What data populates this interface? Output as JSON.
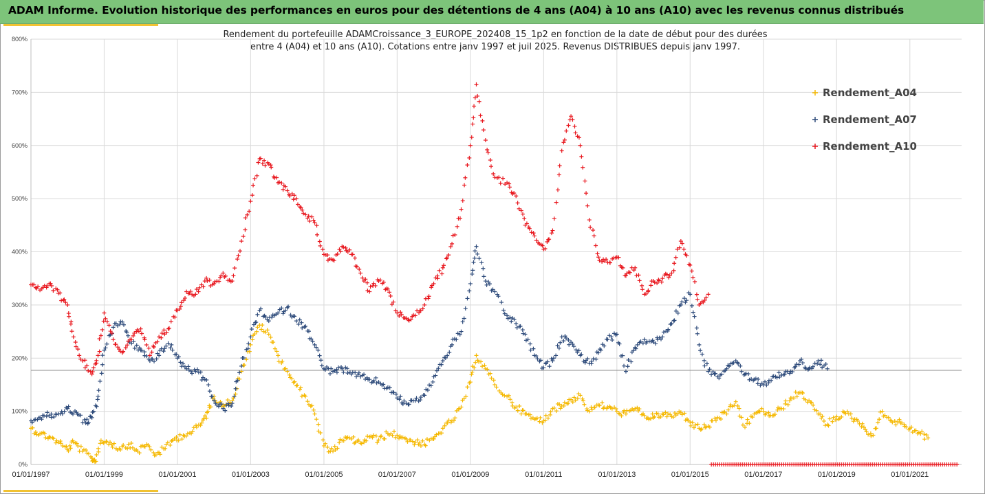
{
  "header": {
    "title": "ADAM Informe. Evolution historique des performances en euros pour des détentions de 4 ans (A04) à 10 ans (A10) avec les revenus connus distribués"
  },
  "colors": {
    "header_bg": "#7dc47a",
    "accent": "#f1c232",
    "A04": "#f5b800",
    "A07": "#2d4a7a",
    "A10": "#e8161d",
    "gridline": "#d9d9d9",
    "refline": "#8c8c8c"
  },
  "chart_data": {
    "type": "scatter",
    "title": "Rendement du portefeuille ADAMCroissance_3_EUROPE_202408_15_1p2  en fonction de la date de début pour des durées",
    "subtitle": "entre 4 (A04) et 10 ans (A10). Cotations  entre janv 1997 et juil 2025. Revenus DISTRIBUES depuis janv 1997.",
    "xlabel": "",
    "ylabel": "",
    "x_type": "date",
    "xlim": [
      "1997-01-01",
      "2022-06-01"
    ],
    "ylim": [
      0,
      800
    ],
    "y_ticks": [
      "0%",
      "100%",
      "200%",
      "300%",
      "400%",
      "500%",
      "600%",
      "700%",
      "800%"
    ],
    "x_ticks": [
      "01/01/1997",
      "01/01/1999",
      "01/01/2001",
      "01/01/2003",
      "01/01/2005",
      "01/01/2007",
      "01/01/2009",
      "01/01/2011",
      "01/01/2013",
      "01/01/2015",
      "01/01/2017",
      "01/01/2019",
      "01/01/2021"
    ],
    "grid": true,
    "legend_position": "top-right",
    "reference_line_y": 177,
    "marker": "+",
    "series": [
      {
        "name": "Rendement_A04",
        "points": [
          [
            "1997-01-01",
            68
          ],
          [
            "1997-04-01",
            58
          ],
          [
            "1997-07-01",
            52
          ],
          [
            "1997-10-01",
            42
          ],
          [
            "1998-01-01",
            28
          ],
          [
            "1998-03-01",
            42
          ],
          [
            "1998-06-01",
            25
          ],
          [
            "1998-09-01",
            12
          ],
          [
            "1998-10-01",
            5
          ],
          [
            "1998-12-01",
            45
          ],
          [
            "1999-03-01",
            42
          ],
          [
            "1999-06-01",
            30
          ],
          [
            "1999-09-01",
            38
          ],
          [
            "1999-12-01",
            25
          ],
          [
            "2000-03-01",
            38
          ],
          [
            "2000-06-01",
            18
          ],
          [
            "2000-09-01",
            30
          ],
          [
            "2000-12-01",
            48
          ],
          [
            "2001-03-01",
            55
          ],
          [
            "2001-06-01",
            62
          ],
          [
            "2001-09-01",
            78
          ],
          [
            "2001-11-01",
            100
          ],
          [
            "2002-01-01",
            128
          ],
          [
            "2002-04-01",
            112
          ],
          [
            "2002-07-01",
            120
          ],
          [
            "2002-10-01",
            175
          ],
          [
            "2003-01-01",
            225
          ],
          [
            "2003-04-01",
            262
          ],
          [
            "2003-07-01",
            245
          ],
          [
            "2003-10-01",
            205
          ],
          [
            "2004-01-01",
            175
          ],
          [
            "2004-04-01",
            148
          ],
          [
            "2004-07-01",
            128
          ],
          [
            "2004-10-01",
            95
          ],
          [
            "2005-01-01",
            35
          ],
          [
            "2005-04-01",
            25
          ],
          [
            "2005-07-01",
            45
          ],
          [
            "2005-10-01",
            48
          ],
          [
            "2006-01-01",
            40
          ],
          [
            "2006-04-01",
            52
          ],
          [
            "2006-07-01",
            46
          ],
          [
            "2006-10-01",
            58
          ],
          [
            "2007-01-01",
            55
          ],
          [
            "2007-04-01",
            48
          ],
          [
            "2007-07-01",
            42
          ],
          [
            "2007-10-01",
            38
          ],
          [
            "2008-01-01",
            48
          ],
          [
            "2008-04-01",
            68
          ],
          [
            "2008-07-01",
            82
          ],
          [
            "2008-10-01",
            108
          ],
          [
            "2009-01-01",
            155
          ],
          [
            "2009-03-01",
            205
          ],
          [
            "2009-06-01",
            180
          ],
          [
            "2009-09-01",
            150
          ],
          [
            "2010-01-01",
            128
          ],
          [
            "2010-04-01",
            108
          ],
          [
            "2010-07-01",
            95
          ],
          [
            "2010-10-01",
            85
          ],
          [
            "2011-01-01",
            82
          ],
          [
            "2011-04-01",
            105
          ],
          [
            "2011-07-01",
            110
          ],
          [
            "2011-10-01",
            122
          ],
          [
            "2012-01-01",
            130
          ],
          [
            "2012-04-01",
            100
          ],
          [
            "2012-07-01",
            112
          ],
          [
            "2012-10-01",
            108
          ],
          [
            "2013-01-01",
            100
          ],
          [
            "2013-04-01",
            95
          ],
          [
            "2013-07-01",
            105
          ],
          [
            "2013-10-01",
            92
          ],
          [
            "2014-01-01",
            88
          ],
          [
            "2014-04-01",
            95
          ],
          [
            "2014-07-01",
            90
          ],
          [
            "2014-10-01",
            98
          ],
          [
            "2015-01-01",
            80
          ],
          [
            "2015-04-01",
            68
          ],
          [
            "2015-07-01",
            72
          ],
          [
            "2015-10-01",
            88
          ],
          [
            "2016-01-01",
            95
          ],
          [
            "2016-04-01",
            118
          ],
          [
            "2016-07-01",
            70
          ],
          [
            "2016-10-01",
            95
          ],
          [
            "2017-01-01",
            100
          ],
          [
            "2017-04-01",
            92
          ],
          [
            "2017-07-01",
            105
          ],
          [
            "2017-10-01",
            125
          ],
          [
            "2018-01-01",
            135
          ],
          [
            "2018-04-01",
            120
          ],
          [
            "2018-07-01",
            95
          ],
          [
            "2018-10-01",
            75
          ],
          [
            "2019-01-01",
            90
          ],
          [
            "2019-04-01",
            96
          ],
          [
            "2019-07-01",
            85
          ],
          [
            "2019-10-01",
            70
          ],
          [
            "2020-01-01",
            55
          ],
          [
            "2020-04-01",
            100
          ],
          [
            "2020-07-01",
            82
          ],
          [
            "2020-10-01",
            78
          ],
          [
            "2021-01-01",
            68
          ],
          [
            "2021-04-01",
            60
          ],
          [
            "2021-07-01",
            50
          ]
        ]
      },
      {
        "name": "Rendement_A07",
        "points": [
          [
            "1997-01-01",
            82
          ],
          [
            "1997-04-01",
            88
          ],
          [
            "1997-07-01",
            92
          ],
          [
            "1997-10-01",
            95
          ],
          [
            "1998-01-01",
            105
          ],
          [
            "1998-04-01",
            98
          ],
          [
            "1998-07-01",
            78
          ],
          [
            "1998-09-01",
            88
          ],
          [
            "1998-11-01",
            128
          ],
          [
            "1999-01-01",
            215
          ],
          [
            "1999-04-01",
            258
          ],
          [
            "1999-07-01",
            268
          ],
          [
            "1999-10-01",
            228
          ],
          [
            "2000-01-01",
            215
          ],
          [
            "2000-04-01",
            195
          ],
          [
            "2000-07-01",
            205
          ],
          [
            "2000-10-01",
            228
          ],
          [
            "2001-01-01",
            200
          ],
          [
            "2001-04-01",
            180
          ],
          [
            "2001-07-01",
            175
          ],
          [
            "2001-10-01",
            160
          ],
          [
            "2002-01-01",
            120
          ],
          [
            "2002-04-01",
            105
          ],
          [
            "2002-07-01",
            115
          ],
          [
            "2002-10-01",
            185
          ],
          [
            "2003-01-01",
            240
          ],
          [
            "2003-04-01",
            290
          ],
          [
            "2003-07-01",
            270
          ],
          [
            "2003-10-01",
            285
          ],
          [
            "2004-01-01",
            295
          ],
          [
            "2004-04-01",
            270
          ],
          [
            "2004-07-01",
            260
          ],
          [
            "2004-10-01",
            225
          ],
          [
            "2005-01-01",
            180
          ],
          [
            "2005-04-01",
            175
          ],
          [
            "2005-07-01",
            180
          ],
          [
            "2005-10-01",
            170
          ],
          [
            "2006-01-01",
            165
          ],
          [
            "2006-04-01",
            160
          ],
          [
            "2006-07-01",
            155
          ],
          [
            "2006-10-01",
            145
          ],
          [
            "2007-01-01",
            125
          ],
          [
            "2007-04-01",
            115
          ],
          [
            "2007-07-01",
            120
          ],
          [
            "2007-10-01",
            130
          ],
          [
            "2008-01-01",
            165
          ],
          [
            "2008-04-01",
            195
          ],
          [
            "2008-07-01",
            225
          ],
          [
            "2008-10-01",
            250
          ],
          [
            "2009-01-01",
            340
          ],
          [
            "2009-03-01",
            410
          ],
          [
            "2009-06-01",
            345
          ],
          [
            "2009-09-01",
            325
          ],
          [
            "2010-01-01",
            280
          ],
          [
            "2010-04-01",
            265
          ],
          [
            "2010-07-01",
            245
          ],
          [
            "2010-10-01",
            205
          ],
          [
            "2011-01-01",
            182
          ],
          [
            "2011-04-01",
            195
          ],
          [
            "2011-07-01",
            240
          ],
          [
            "2011-10-01",
            230
          ],
          [
            "2012-01-01",
            205
          ],
          [
            "2012-04-01",
            190
          ],
          [
            "2012-07-01",
            210
          ],
          [
            "2012-10-01",
            235
          ],
          [
            "2013-01-01",
            245
          ],
          [
            "2013-04-01",
            175
          ],
          [
            "2013-07-01",
            220
          ],
          [
            "2013-10-01",
            235
          ],
          [
            "2014-01-01",
            230
          ],
          [
            "2014-04-01",
            240
          ],
          [
            "2014-07-01",
            265
          ],
          [
            "2014-10-01",
            300
          ],
          [
            "2015-01-01",
            320
          ],
          [
            "2015-04-01",
            225
          ],
          [
            "2015-07-01",
            175
          ],
          [
            "2015-10-01",
            165
          ],
          [
            "2016-01-01",
            180
          ],
          [
            "2016-04-01",
            195
          ],
          [
            "2016-07-01",
            170
          ],
          [
            "2016-10-01",
            160
          ],
          [
            "2017-01-01",
            150
          ],
          [
            "2017-04-01",
            165
          ],
          [
            "2017-07-01",
            168
          ],
          [
            "2017-10-01",
            175
          ],
          [
            "2018-01-01",
            195
          ],
          [
            "2018-04-01",
            180
          ],
          [
            "2018-07-01",
            195
          ],
          [
            "2018-10-01",
            180
          ]
        ]
      },
      {
        "name": "Rendement_A10",
        "points": [
          [
            "1997-01-01",
            338
          ],
          [
            "1997-04-01",
            328
          ],
          [
            "1997-07-01",
            340
          ],
          [
            "1997-10-01",
            322
          ],
          [
            "1998-01-01",
            300
          ],
          [
            "1998-03-01",
            240
          ],
          [
            "1998-06-01",
            195
          ],
          [
            "1998-09-01",
            170
          ],
          [
            "1998-11-01",
            205
          ],
          [
            "1999-01-01",
            285
          ],
          [
            "1999-04-01",
            235
          ],
          [
            "1999-07-01",
            210
          ],
          [
            "1999-10-01",
            235
          ],
          [
            "2000-01-01",
            255
          ],
          [
            "2000-04-01",
            205
          ],
          [
            "2000-07-01",
            240
          ],
          [
            "2000-10-01",
            255
          ],
          [
            "2001-01-01",
            290
          ],
          [
            "2001-04-01",
            325
          ],
          [
            "2001-07-01",
            320
          ],
          [
            "2001-10-01",
            345
          ],
          [
            "2002-01-01",
            340
          ],
          [
            "2002-04-01",
            360
          ],
          [
            "2002-07-01",
            345
          ],
          [
            "2002-10-01",
            420
          ],
          [
            "2003-01-01",
            495
          ],
          [
            "2003-04-01",
            575
          ],
          [
            "2003-07-01",
            565
          ],
          [
            "2003-10-01",
            530
          ],
          [
            "2004-01-01",
            515
          ],
          [
            "2004-04-01",
            500
          ],
          [
            "2004-07-01",
            470
          ],
          [
            "2004-10-01",
            455
          ],
          [
            "2005-01-01",
            395
          ],
          [
            "2005-04-01",
            385
          ],
          [
            "2005-07-01",
            410
          ],
          [
            "2005-10-01",
            395
          ],
          [
            "2006-01-01",
            360
          ],
          [
            "2006-04-01",
            325
          ],
          [
            "2006-07-01",
            345
          ],
          [
            "2006-10-01",
            330
          ],
          [
            "2007-01-01",
            285
          ],
          [
            "2007-04-01",
            275
          ],
          [
            "2007-07-01",
            280
          ],
          [
            "2007-10-01",
            300
          ],
          [
            "2008-01-01",
            340
          ],
          [
            "2008-04-01",
            370
          ],
          [
            "2008-07-01",
            415
          ],
          [
            "2008-10-01",
            480
          ],
          [
            "2009-01-01",
            600
          ],
          [
            "2009-03-01",
            715
          ],
          [
            "2009-06-01",
            610
          ],
          [
            "2009-09-01",
            540
          ],
          [
            "2010-01-01",
            530
          ],
          [
            "2010-04-01",
            505
          ],
          [
            "2010-07-01",
            450
          ],
          [
            "2010-10-01",
            430
          ],
          [
            "2011-01-01",
            405
          ],
          [
            "2011-04-01",
            440
          ],
          [
            "2011-07-01",
            590
          ],
          [
            "2011-10-01",
            655
          ],
          [
            "2012-01-01",
            600
          ],
          [
            "2012-04-01",
            460
          ],
          [
            "2012-07-01",
            390
          ],
          [
            "2012-10-01",
            380
          ],
          [
            "2013-01-01",
            390
          ],
          [
            "2013-04-01",
            355
          ],
          [
            "2013-07-01",
            370
          ],
          [
            "2013-10-01",
            320
          ],
          [
            "2014-01-01",
            345
          ],
          [
            "2014-04-01",
            350
          ],
          [
            "2014-07-01",
            360
          ],
          [
            "2014-10-01",
            420
          ],
          [
            "2015-01-01",
            375
          ],
          [
            "2015-04-01",
            300
          ],
          [
            "2015-07-01",
            320
          ]
        ]
      },
      {
        "name": "A10_zero",
        "x_from": "2015-08-01",
        "x_to": "2022-05-01",
        "value": 0
      }
    ]
  }
}
